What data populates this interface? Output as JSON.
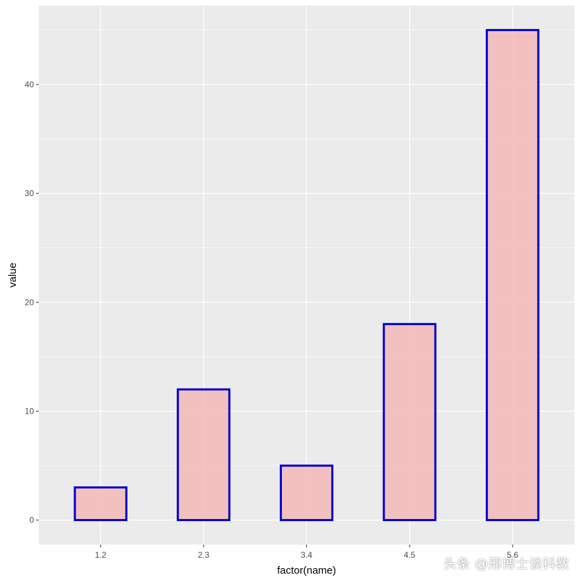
{
  "chart_data": {
    "type": "bar",
    "categories": [
      "1.2",
      "2.3",
      "3.4",
      "4.5",
      "5.6"
    ],
    "values": [
      3,
      12,
      5,
      18,
      45
    ],
    "title": "",
    "xlabel": "factor(name)",
    "ylabel": "value",
    "ylim": [
      -2.25,
      47.25
    ],
    "yticks": [
      0,
      10,
      20,
      30,
      40
    ],
    "grid": true,
    "legend": "none",
    "colors": {
      "panel_background": "#ebebeb",
      "grid_line": "#ffffff",
      "bar_fill": "#f4b6b6",
      "bar_outline": "#0000cd"
    }
  },
  "watermark": {
    "text": "头条 @邢博士谈科教"
  }
}
